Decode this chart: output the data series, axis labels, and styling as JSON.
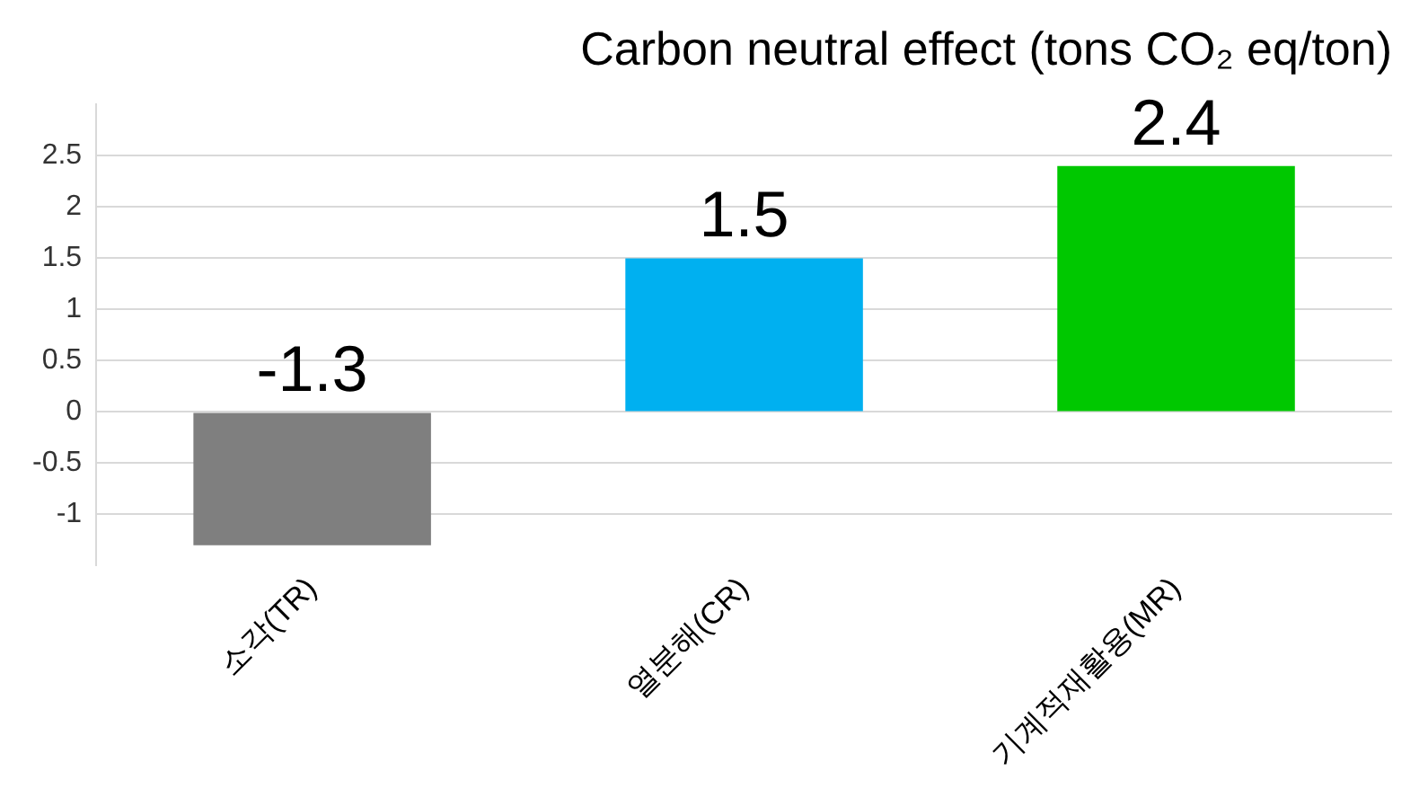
{
  "chart_data": {
    "type": "bar",
    "title": "Carbon neutral effect (tons CO₂ eq/ton)",
    "categories": [
      "소각(TR)",
      "열분해(CR)",
      "기계적재활용(MR)"
    ],
    "values": [
      -1.3,
      1.5,
      2.4
    ],
    "colors": [
      "#7f7f7f",
      "#00b0f0",
      "#00c800"
    ],
    "ylim": [
      -1.5,
      3
    ],
    "yticks": [
      -1,
      -0.5,
      0,
      0.5,
      1,
      1.5,
      2,
      2.5
    ],
    "grid": "y",
    "data_labels": true
  }
}
